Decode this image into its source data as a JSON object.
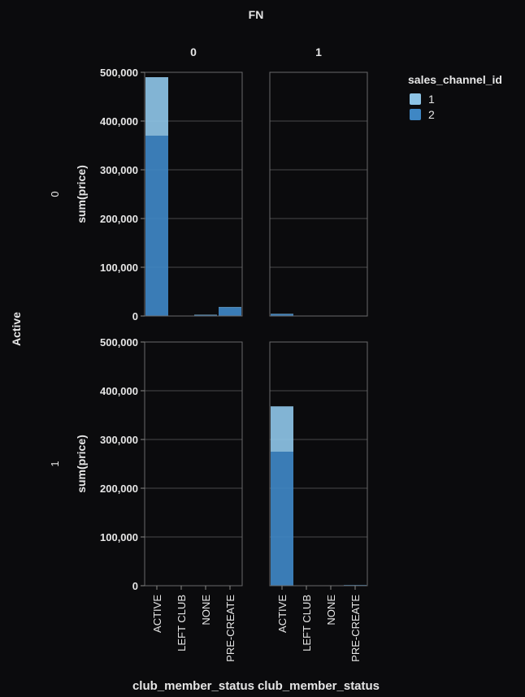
{
  "chart_data": {
    "type": "bar",
    "stacked": true,
    "column_facet": {
      "field": "FN",
      "values": [
        "0",
        "1"
      ]
    },
    "row_facet": {
      "field": "Active",
      "values": [
        "0",
        "1"
      ]
    },
    "categories": [
      "ACTIVE",
      "LEFT CLUB",
      "NONE",
      "PRE-CREATE"
    ],
    "xlabel": "club_member_status",
    "ylabel": "sum(price)",
    "ylim": [
      0,
      500000
    ],
    "yticks": [
      "0",
      "100,000",
      "200,000",
      "300,000",
      "400,000",
      "500,000"
    ],
    "grid": true,
    "legend": {
      "title": "sales_channel_id",
      "placement": "top-right",
      "items": [
        {
          "label": "1",
          "color": "#8dc3e5"
        },
        {
          "label": "2",
          "color": "#3f87c4"
        }
      ]
    },
    "panels": [
      {
        "row": "0",
        "col": "0",
        "series": [
          {
            "name": "2",
            "values": [
              370000,
              0,
              2000,
              18000
            ]
          },
          {
            "name": "1",
            "values": [
              120000,
              0,
              500,
              500
            ]
          }
        ]
      },
      {
        "row": "0",
        "col": "1",
        "series": [
          {
            "name": "2",
            "values": [
              4000,
              0,
              0,
              0
            ]
          },
          {
            "name": "1",
            "values": [
              500,
              0,
              0,
              0
            ]
          }
        ]
      },
      {
        "row": "1",
        "col": "0",
        "series": [
          {
            "name": "2",
            "values": [
              0,
              0,
              0,
              0
            ]
          },
          {
            "name": "1",
            "values": [
              0,
              0,
              0,
              0
            ]
          }
        ]
      },
      {
        "row": "1",
        "col": "1",
        "series": [
          {
            "name": "2",
            "values": [
              275000,
              0,
              500,
              1500
            ]
          },
          {
            "name": "1",
            "values": [
              93000,
              0,
              0,
              0
            ]
          }
        ]
      }
    ]
  }
}
